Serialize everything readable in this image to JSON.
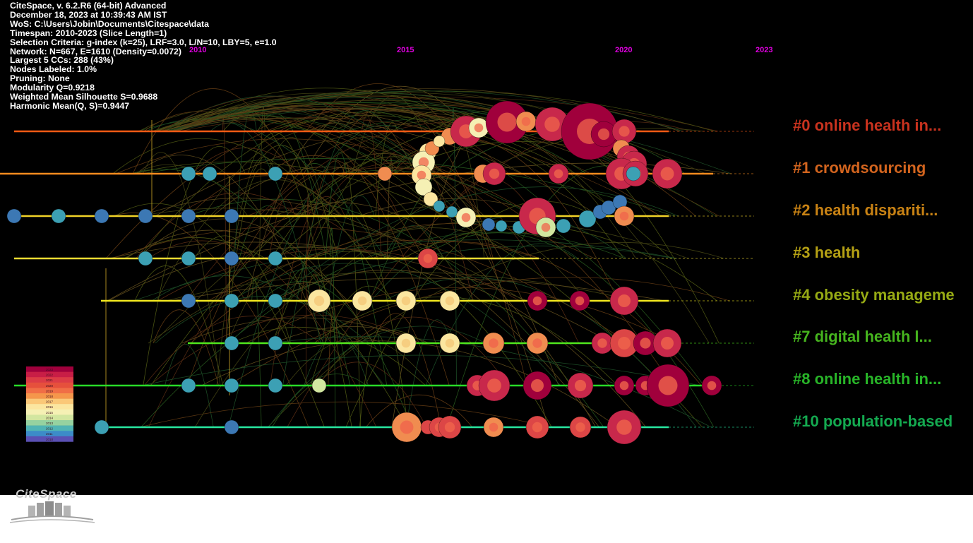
{
  "info_lines": [
    "CiteSpace, v. 6.2.R6 (64-bit) Advanced",
    "December 18, 2023 at 10:39:43 AM IST",
    "WoS: C:\\Users\\Jobin\\Documents\\Citespace\\data",
    "Timespan: 2010-2023 (Slice Length=1)",
    "Selection Criteria: g-index (k=25), LRF=3.0, L/N=10, LBY=5, e=1.0",
    "Network: N=667, E=1610 (Density=0.0072)",
    "Largest 5 CCs: 288 (43%)",
    "Nodes Labeled: 1.0%",
    "Pruning: None",
    "Modularity Q=0.9218",
    "Weighted Mean Silhouette S=0.9688",
    "Harmonic Mean(Q, S)=0.9447"
  ],
  "timeline_years": [
    "2010",
    "2015",
    "2020",
    "2023"
  ],
  "clusters": [
    {
      "label": "#0 online health in...",
      "color": "#c8321e"
    },
    {
      "label": "#1 crowdsourcing",
      "color": "#d2641e"
    },
    {
      "label": "#2 health dispariti...",
      "color": "#c88214"
    },
    {
      "label": "#3 health",
      "color": "#b4a014"
    },
    {
      "label": "#4 obesity manageme",
      "color": "#96aa14"
    },
    {
      "label": "#7 digital health l...",
      "color": "#46b41e"
    },
    {
      "label": "#8 online health in...",
      "color": "#28b428"
    },
    {
      "label": "#10 population-based",
      "color": "#14aa50"
    }
  ],
  "legend": {
    "years": [
      "2023",
      "2022",
      "2021",
      "2020",
      "2019",
      "2018",
      "2017",
      "2016",
      "2015",
      "2014",
      "2013",
      "2012",
      "2011",
      "2010"
    ],
    "colors": [
      "#a0003c",
      "#c81e46",
      "#dc3c46",
      "#e6503c",
      "#f06e46",
      "#f5964b",
      "#fac878",
      "#fbe6a0",
      "#f5f0b4",
      "#d2e6a0",
      "#96d2a0",
      "#50b4b4",
      "#3c8cc8",
      "#5a50b4"
    ]
  },
  "logo_text": "CiteSpace"
}
